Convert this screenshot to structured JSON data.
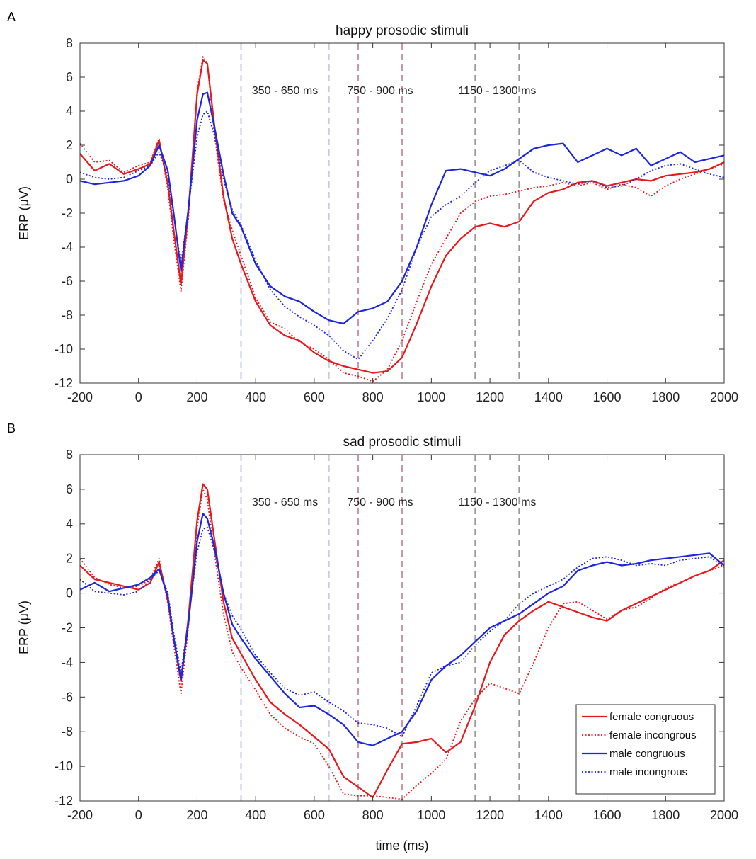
{
  "chart_data": [
    {
      "panel": "A",
      "type": "line",
      "title": "happy prosodic stimuli",
      "xlabel": "",
      "ylabel": "ERP (μV)",
      "xlim": [
        -200,
        2000
      ],
      "ylim": [
        -12,
        8
      ],
      "xticks": [
        -200,
        0,
        200,
        400,
        600,
        800,
        1000,
        1200,
        1400,
        1600,
        1800,
        2000
      ],
      "yticks": [
        8,
        6,
        4,
        2,
        0,
        -2,
        -4,
        -6,
        -8,
        -10,
        -12
      ],
      "windows": [
        {
          "label": "350 - 650 ms",
          "start": 350,
          "end": 650,
          "color": "#c9cde2"
        },
        {
          "label": "750 - 900 ms",
          "start": 750,
          "end": 900,
          "color": "#c99aa6"
        },
        {
          "label": "1150 - 1300 ms",
          "start": 1150,
          "end": 1300,
          "color": "#9a9a9a"
        }
      ],
      "legend": null,
      "series": [
        {
          "name": "female congruous",
          "color": "#e8191c",
          "style": "solid",
          "x": [
            -200,
            -150,
            -100,
            -50,
            0,
            40,
            70,
            100,
            120,
            145,
            170,
            200,
            220,
            235,
            260,
            290,
            320,
            350,
            400,
            450,
            500,
            550,
            600,
            650,
            700,
            750,
            800,
            850,
            900,
            950,
            1000,
            1050,
            1100,
            1150,
            1200,
            1250,
            1300,
            1350,
            1400,
            1450,
            1500,
            1550,
            1600,
            1650,
            1700,
            1750,
            1800,
            1850,
            1900,
            1950,
            2000
          ],
          "y": [
            1.5,
            0.5,
            0.9,
            0.3,
            0.6,
            0.9,
            2.3,
            -0.3,
            -3,
            -6.2,
            -2,
            5,
            7,
            6.8,
            3,
            -1,
            -3.5,
            -5,
            -7.2,
            -8.6,
            -9.2,
            -9.5,
            -10.2,
            -10.7,
            -11,
            -11.2,
            -11.4,
            -11.3,
            -10.5,
            -8.5,
            -6.3,
            -4.5,
            -3.5,
            -2.8,
            -2.6,
            -2.8,
            -2.5,
            -1.3,
            -0.8,
            -0.6,
            -0.2,
            -0.1,
            -0.4,
            -0.2,
            0,
            -0.1,
            0.2,
            0.3,
            0.4,
            0.6,
            1
          ]
        },
        {
          "name": "female incongrous",
          "color": "#e8191c",
          "style": "dotted",
          "x": [
            -200,
            -150,
            -100,
            -50,
            0,
            40,
            70,
            100,
            120,
            145,
            170,
            200,
            220,
            235,
            260,
            290,
            320,
            350,
            400,
            450,
            500,
            550,
            600,
            650,
            700,
            750,
            800,
            850,
            900,
            950,
            1000,
            1050,
            1100,
            1150,
            1200,
            1250,
            1300,
            1350,
            1400,
            1450,
            1500,
            1550,
            1600,
            1650,
            1700,
            1750,
            1800,
            1850,
            1900,
            1950,
            2000
          ],
          "y": [
            2.1,
            1,
            1.1,
            0.4,
            0.8,
            1,
            2.4,
            -0.6,
            -3.5,
            -6.6,
            -2.4,
            5.2,
            7.2,
            6.8,
            2.5,
            -1.2,
            -3,
            -4.5,
            -7,
            -8.4,
            -8.8,
            -9.6,
            -10,
            -10.6,
            -11.4,
            -11.6,
            -11.9,
            -11.2,
            -9.5,
            -7.2,
            -5,
            -3.5,
            -2,
            -1.3,
            -1,
            -0.9,
            -0.7,
            -0.5,
            -0.4,
            -0.2,
            -0.4,
            -0.2,
            -0.6,
            -0.3,
            -0.5,
            -1,
            -0.4,
            0,
            0.3,
            0.6,
            0.9
          ]
        },
        {
          "name": "male congruous",
          "color": "#1c26e0",
          "style": "solid",
          "x": [
            -200,
            -150,
            -100,
            -50,
            0,
            40,
            70,
            100,
            120,
            145,
            170,
            200,
            220,
            235,
            260,
            290,
            320,
            350,
            400,
            450,
            500,
            550,
            600,
            650,
            700,
            750,
            800,
            850,
            900,
            950,
            1000,
            1050,
            1100,
            1150,
            1200,
            1250,
            1300,
            1350,
            1400,
            1450,
            1500,
            1550,
            1600,
            1650,
            1700,
            1750,
            1800,
            1850,
            1900,
            1950,
            2000
          ],
          "y": [
            -0.1,
            -0.3,
            -0.2,
            -0.1,
            0.2,
            0.8,
            2,
            0.5,
            -2,
            -5.4,
            -1.8,
            3.5,
            5,
            5.1,
            3,
            0.3,
            -2,
            -2.8,
            -5,
            -6.3,
            -6.9,
            -7.2,
            -7.8,
            -8.3,
            -8.5,
            -7.8,
            -7.6,
            -7.2,
            -6,
            -4,
            -1.5,
            0.5,
            0.6,
            0.4,
            0.2,
            0.6,
            1.2,
            1.8,
            2,
            2.1,
            1,
            1.4,
            1.8,
            1.4,
            1.8,
            0.8,
            1.2,
            1.6,
            1,
            1.2,
            1.4
          ]
        },
        {
          "name": "male incongrous",
          "color": "#1c26e0",
          "style": "dotted",
          "x": [
            -200,
            -150,
            -100,
            -50,
            0,
            40,
            70,
            100,
            120,
            145,
            170,
            200,
            220,
            235,
            260,
            290,
            320,
            350,
            400,
            450,
            500,
            550,
            600,
            650,
            700,
            750,
            800,
            850,
            900,
            950,
            1000,
            1050,
            1100,
            1150,
            1200,
            1250,
            1300,
            1350,
            1400,
            1450,
            1500,
            1550,
            1600,
            1650,
            1700,
            1750,
            1800,
            1850,
            1900,
            1950,
            2000
          ],
          "y": [
            0.4,
            0.1,
            0,
            0.1,
            0.5,
            0.8,
            1.6,
            0.2,
            -2.2,
            -5,
            -1.8,
            2.5,
            3.8,
            4,
            2.5,
            0,
            -1.8,
            -2.7,
            -4.8,
            -6.5,
            -7.5,
            -8.1,
            -8.6,
            -9.2,
            -10.1,
            -10.6,
            -9.5,
            -8.2,
            -6.5,
            -4,
            -2.2,
            -1.5,
            -1,
            -0.2,
            0.5,
            0.8,
            1.1,
            0.4,
            0.1,
            -0.1,
            -0.3,
            -0.1,
            -0.5,
            -0.4,
            0,
            0.5,
            0.8,
            0.9,
            0.6,
            0.3,
            0.1
          ]
        }
      ]
    },
    {
      "panel": "B",
      "type": "line",
      "title": "sad prosodic stimuli",
      "xlabel": "time (ms)",
      "ylabel": "ERP (μV)",
      "xlim": [
        -200,
        2000
      ],
      "ylim": [
        -12,
        8
      ],
      "xticks": [
        -200,
        0,
        200,
        400,
        600,
        800,
        1000,
        1200,
        1400,
        1600,
        1800,
        2000
      ],
      "yticks": [
        8,
        6,
        4,
        2,
        0,
        -2,
        -4,
        -6,
        -8,
        -10,
        -12
      ],
      "windows": [
        {
          "label": "350 - 650 ms",
          "start": 350,
          "end": 650,
          "color": "#c9cde2"
        },
        {
          "label": "750 - 900 ms",
          "start": 750,
          "end": 900,
          "color": "#c99aa6"
        },
        {
          "label": "1150 - 1300 ms",
          "start": 1150,
          "end": 1300,
          "color": "#9a9a9a"
        }
      ],
      "legend": "bottom-right",
      "series": [
        {
          "name": "female congruous",
          "color": "#e8191c",
          "style": "solid",
          "x": [
            -200,
            -150,
            -100,
            -50,
            0,
            40,
            70,
            100,
            120,
            145,
            170,
            200,
            220,
            235,
            260,
            290,
            320,
            350,
            400,
            450,
            500,
            550,
            600,
            650,
            700,
            750,
            800,
            850,
            900,
            950,
            1000,
            1050,
            1100,
            1150,
            1200,
            1250,
            1300,
            1350,
            1400,
            1450,
            1500,
            1550,
            1600,
            1650,
            1700,
            1750,
            1800,
            1850,
            1900,
            1950,
            2000
          ],
          "y": [
            1.6,
            0.8,
            0.6,
            0.4,
            0.2,
            0.6,
            1.8,
            -0.4,
            -2.6,
            -5.1,
            -1.5,
            4.2,
            6.3,
            6,
            3,
            -0.5,
            -2.6,
            -3.5,
            -5,
            -6.3,
            -7,
            -7.6,
            -8.3,
            -9,
            -10.6,
            -11.2,
            -11.8,
            -10.2,
            -8.7,
            -8.6,
            -8.4,
            -9.2,
            -8.6,
            -6.5,
            -4,
            -2.4,
            -1.6,
            -1,
            -0.5,
            -0.8,
            -1.1,
            -1.4,
            -1.6,
            -1,
            -0.6,
            -0.2,
            0.2,
            0.6,
            1,
            1.3,
            1.9
          ]
        },
        {
          "name": "female incongrous",
          "color": "#e8191c",
          "style": "dotted",
          "x": [
            -200,
            -150,
            -100,
            -50,
            0,
            40,
            70,
            100,
            120,
            145,
            170,
            200,
            220,
            235,
            260,
            290,
            320,
            350,
            400,
            450,
            500,
            550,
            600,
            650,
            700,
            750,
            800,
            850,
            900,
            950,
            1000,
            1050,
            1100,
            1150,
            1200,
            1250,
            1300,
            1350,
            1400,
            1450,
            1500,
            1550,
            1600,
            1650,
            1700,
            1750,
            1800,
            1850,
            1900,
            1950,
            2000
          ],
          "y": [
            2,
            0.9,
            0.5,
            0.3,
            0.4,
            0.8,
            2,
            -0.6,
            -3,
            -5.8,
            -2,
            3.8,
            6,
            5.4,
            2.2,
            -1.2,
            -3.4,
            -4.3,
            -5.6,
            -7,
            -7.8,
            -8.3,
            -8.7,
            -10,
            -11.6,
            -11.7,
            -11.7,
            -11.8,
            -11.9,
            -11.1,
            -10.4,
            -9.6,
            -7.4,
            -6.1,
            -5.2,
            -5.5,
            -5.8,
            -4,
            -2,
            -0.6,
            -0.5,
            -1,
            -1.5,
            -1,
            -0.8,
            -0.3,
            0.3,
            0.6,
            1,
            1.3,
            1.6
          ]
        },
        {
          "name": "male congruous",
          "color": "#1c26e0",
          "style": "solid",
          "x": [
            -200,
            -150,
            -100,
            -50,
            0,
            40,
            70,
            100,
            120,
            145,
            170,
            200,
            220,
            235,
            260,
            290,
            320,
            350,
            400,
            450,
            500,
            550,
            600,
            650,
            700,
            750,
            800,
            850,
            900,
            950,
            1000,
            1050,
            1100,
            1150,
            1200,
            1250,
            1300,
            1350,
            1400,
            1450,
            1500,
            1550,
            1600,
            1650,
            1700,
            1750,
            1800,
            1850,
            1900,
            1950,
            2000
          ],
          "y": [
            0.2,
            0.6,
            0.1,
            0.3,
            0.5,
            0.9,
            1.4,
            -0.2,
            -2.6,
            -5,
            -1.8,
            3,
            4.6,
            4.3,
            2.6,
            0,
            -1.8,
            -2.6,
            -3.8,
            -4.8,
            -5.8,
            -6.6,
            -6.5,
            -7,
            -7.6,
            -8.6,
            -8.8,
            -8.4,
            -8,
            -6.8,
            -5,
            -4.2,
            -3.6,
            -2.8,
            -2,
            -1.6,
            -1.2,
            -0.6,
            0,
            0.4,
            1.3,
            1.6,
            1.8,
            1.6,
            1.7,
            1.9,
            2,
            2.1,
            2.2,
            2.3,
            1.6
          ]
        },
        {
          "name": "male incongrous",
          "color": "#1c26e0",
          "style": "dotted",
          "x": [
            -200,
            -150,
            -100,
            -50,
            0,
            40,
            70,
            100,
            120,
            145,
            170,
            200,
            220,
            235,
            260,
            290,
            320,
            350,
            400,
            450,
            500,
            550,
            600,
            650,
            700,
            750,
            800,
            850,
            900,
            950,
            1000,
            1050,
            1100,
            1150,
            1200,
            1250,
            1300,
            1350,
            1400,
            1450,
            1500,
            1550,
            1600,
            1650,
            1700,
            1750,
            1800,
            1850,
            1900,
            1950,
            2000
          ],
          "y": [
            0.8,
            0.1,
            0,
            -0.1,
            0.1,
            0.8,
            1.3,
            0,
            -2.3,
            -4.6,
            -1.6,
            2.4,
            3.7,
            3.8,
            2.4,
            0,
            -1.3,
            -2.1,
            -3.6,
            -4.6,
            -5.5,
            -5.9,
            -5.7,
            -6.3,
            -6.8,
            -7.5,
            -7.6,
            -7.8,
            -8.3,
            -6.5,
            -4.6,
            -4.2,
            -4,
            -3,
            -2.2,
            -1.6,
            -0.6,
            0,
            0.4,
            0.8,
            1.5,
            2,
            2.1,
            1.9,
            1.6,
            1.7,
            1.6,
            1.9,
            2,
            2.1,
            1.5
          ]
        }
      ]
    }
  ]
}
